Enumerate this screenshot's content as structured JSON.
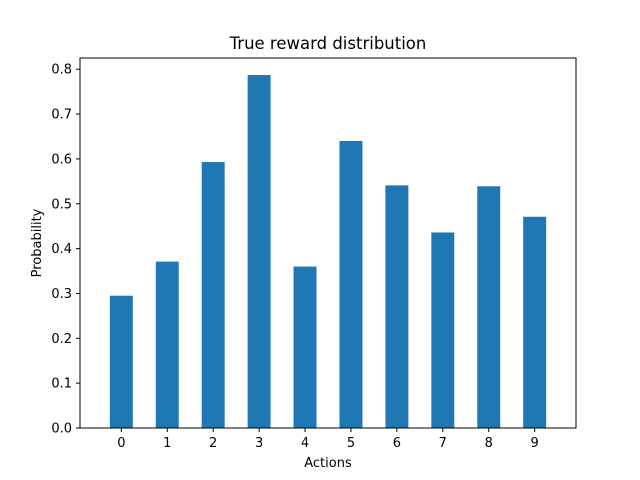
{
  "chart_data": {
    "type": "bar",
    "title": "True reward distribution",
    "xlabel": "Actions",
    "ylabel": "Probability",
    "categories": [
      "0",
      "1",
      "2",
      "3",
      "4",
      "5",
      "6",
      "7",
      "8",
      "9"
    ],
    "values": [
      0.295,
      0.371,
      0.593,
      0.787,
      0.36,
      0.64,
      0.541,
      0.436,
      0.539,
      0.471
    ],
    "ylim": [
      0,
      0.825
    ],
    "yticks": [
      "0.0",
      "0.1",
      "0.2",
      "0.3",
      "0.4",
      "0.5",
      "0.6",
      "0.7",
      "0.8"
    ],
    "bar_color": "#1f77b4",
    "grid": false,
    "legend": false
  }
}
